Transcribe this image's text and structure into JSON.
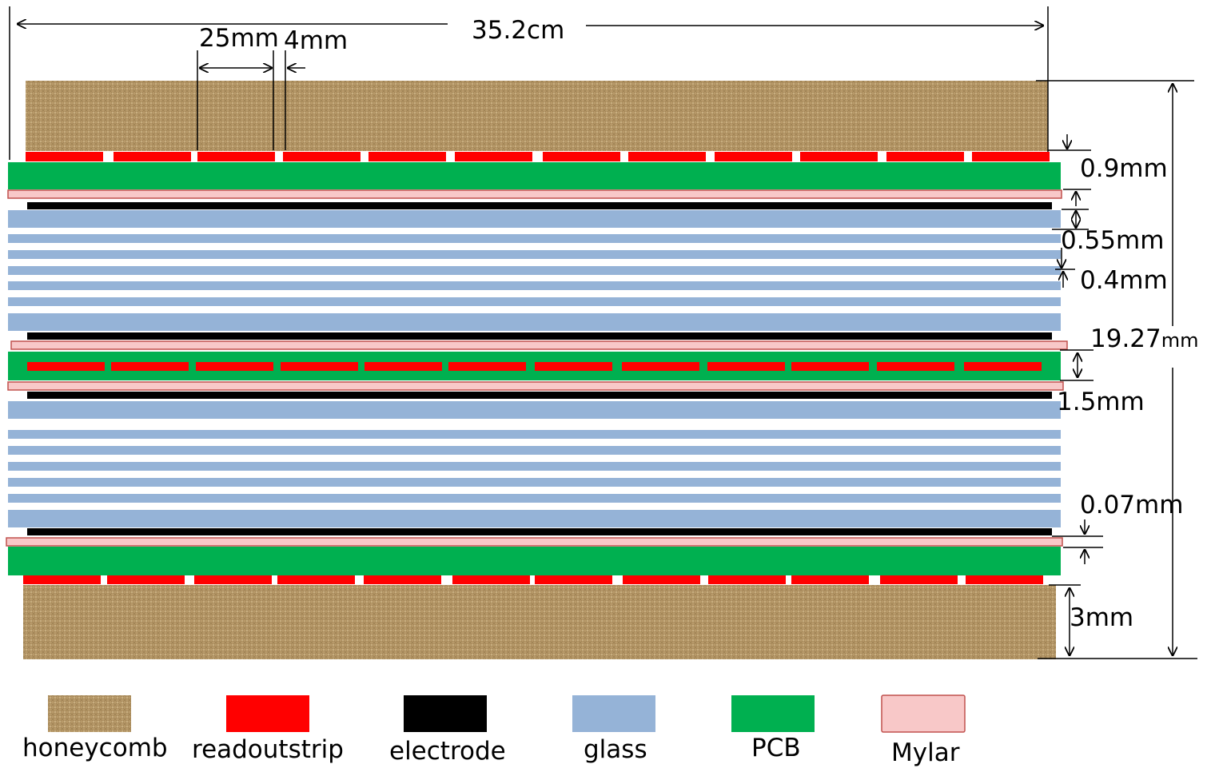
{
  "colors": {
    "honeycomb": "#b89a6a",
    "honeycomb_dark": "#8f7346",
    "readoutstrip": "#ff0000",
    "electrode": "#000000",
    "glass": "#95b3d7",
    "pcb": "#00b050",
    "mylar": "#f8c8c8",
    "mylar_border": "#c0504d"
  },
  "dimensions": {
    "total_width": "35.2cm",
    "strip_width": "25mm",
    "strip_gap": "4mm",
    "pcb_thickness": "0.9mm",
    "gap_055": "0.55mm",
    "glass_04": "0.4mm",
    "total_height_num": "19.27",
    "total_height_unit": "mm",
    "middle_pcb": "1.5mm",
    "mylar_007": "0.07mm",
    "honeycomb_3": "3mm"
  },
  "legend": [
    {
      "key": "honeycomb",
      "label": "honeycomb"
    },
    {
      "key": "readoutstrip",
      "label": "readoutstrip"
    },
    {
      "key": "electrode",
      "label": "electrode"
    },
    {
      "key": "glass",
      "label": "glass"
    },
    {
      "key": "pcb",
      "label": "PCB"
    },
    {
      "key": "mylar",
      "label": "Mylar"
    }
  ]
}
